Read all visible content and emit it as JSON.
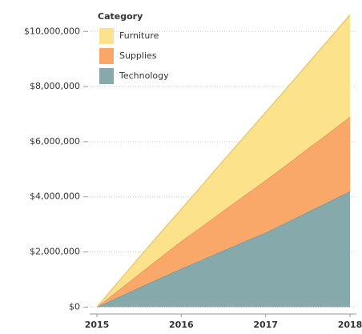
{
  "chart_data": {
    "type": "area",
    "stacked": true,
    "legend_title": "Category",
    "legend": "top-left",
    "x": [
      2015,
      2015.25,
      2015.5,
      2015.75,
      2016,
      2016.25,
      2016.5,
      2016.75,
      2017,
      2017.25,
      2017.5,
      2017.75,
      2018
    ],
    "series": [
      {
        "name": "Technology",
        "color": "#86a9ab",
        "values": [
          0,
          350000,
          700000,
          1050000,
          1390000,
          1720000,
          2050000,
          2380000,
          2700000,
          3070000,
          3450000,
          3820000,
          4200000
        ]
      },
      {
        "name": "Supplies",
        "color": "#f9a869",
        "values": [
          0,
          250000,
          500000,
          750000,
          1000000,
          1220000,
          1450000,
          1670000,
          1900000,
          2100000,
          2300000,
          2500000,
          2700000
        ]
      },
      {
        "name": "Furniture",
        "color": "#fde28c",
        "values": [
          0,
          300000,
          600000,
          880000,
          1160000,
          1490000,
          1820000,
          2140000,
          2460000,
          2770000,
          3080000,
          3390000,
          3700000
        ]
      }
    ],
    "xlim": [
      2015,
      2018
    ],
    "xticks": [
      2015,
      2016,
      2017,
      2018
    ],
    "ylim": [
      -250000,
      10850000
    ],
    "yticks": [
      {
        "value": 0,
        "label": "$0"
      },
      {
        "value": 2000000,
        "label": "$2,000,000"
      },
      {
        "value": 4000000,
        "label": "$4,000,000"
      },
      {
        "value": 6000000,
        "label": "$6,000,000"
      },
      {
        "value": 8000000,
        "label": "$8,000,000"
      },
      {
        "value": 10000000,
        "label": "$10,000,000"
      }
    ],
    "grid": true
  }
}
